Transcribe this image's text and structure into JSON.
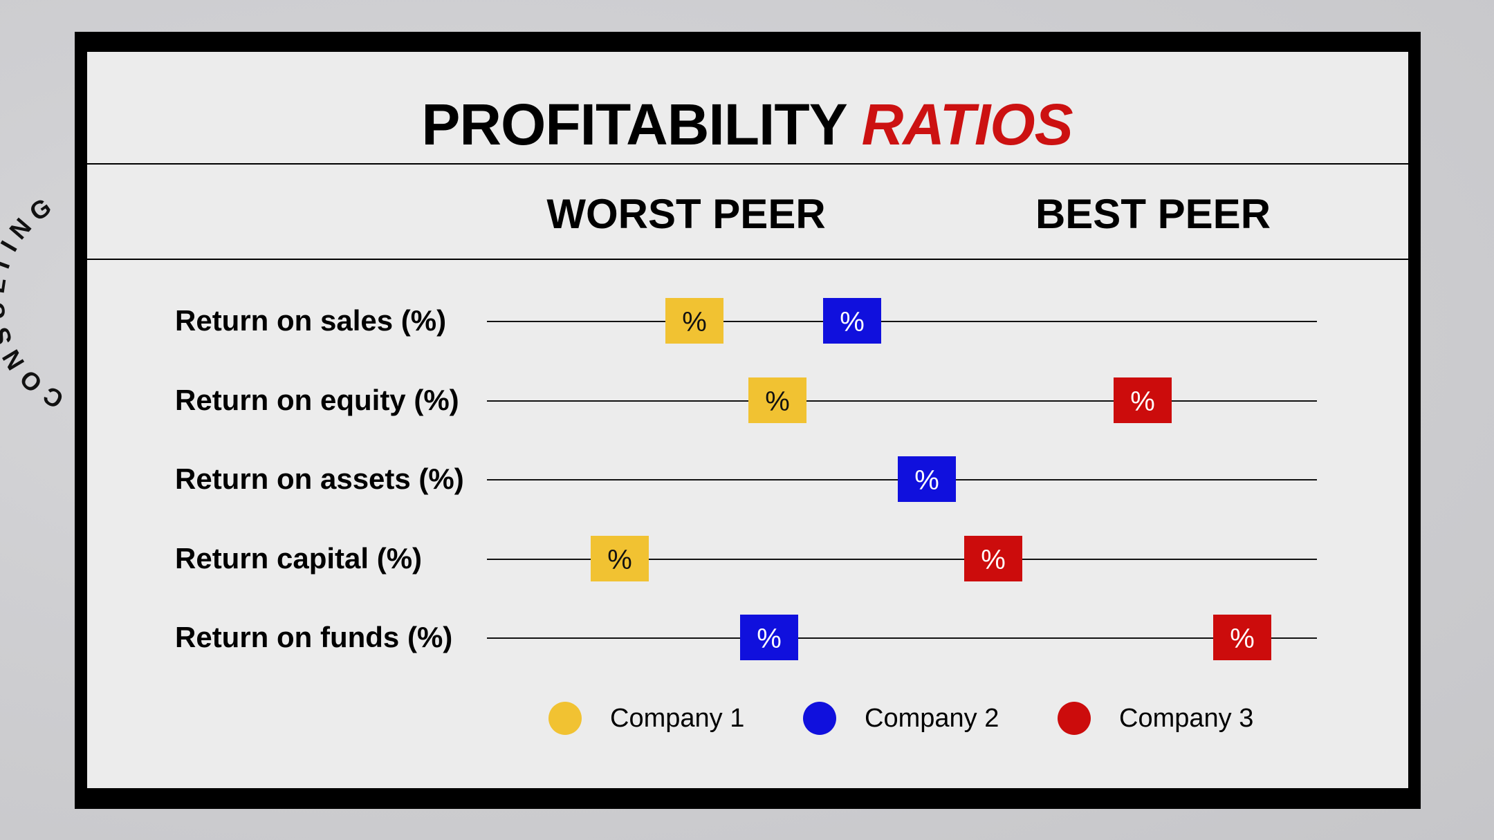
{
  "title": {
    "main": "PROFITABILITY",
    "accent": "RATIOS"
  },
  "side_text": "CONSULTING",
  "colors": {
    "company1": "#f1c232",
    "company2": "#1010dd",
    "company3": "#cc0c0c",
    "accent": "#cc1111"
  },
  "chart_data": {
    "type": "scatter",
    "axis": {
      "left_label": "WORST PEER",
      "right_label": "BEST PEER",
      "range": [
        0,
        100
      ]
    },
    "rows": [
      {
        "label": "Return on sales (%)",
        "markers": [
          {
            "company": 1,
            "position": 25,
            "text": "%"
          },
          {
            "company": 2,
            "position": 44,
            "text": "%"
          }
        ]
      },
      {
        "label": "Return on equity (%)",
        "markers": [
          {
            "company": 1,
            "position": 35,
            "text": "%"
          },
          {
            "company": 3,
            "position": 79,
            "text": "%"
          }
        ]
      },
      {
        "label": "Return on assets (%)",
        "markers": [
          {
            "company": 2,
            "position": 53,
            "text": "%"
          }
        ]
      },
      {
        "label": "Return capital (%)",
        "markers": [
          {
            "company": 1,
            "position": 16,
            "text": "%"
          },
          {
            "company": 3,
            "position": 61,
            "text": "%"
          }
        ]
      },
      {
        "label": "Return on funds (%)",
        "markers": [
          {
            "company": 2,
            "position": 34,
            "text": "%"
          },
          {
            "company": 3,
            "position": 91,
            "text": "%"
          }
        ]
      }
    ],
    "series": [
      {
        "name": "Company 1",
        "color": "#f1c232"
      },
      {
        "name": "Company 2",
        "color": "#1010dd"
      },
      {
        "name": "Company 3",
        "color": "#cc0c0c"
      }
    ]
  }
}
